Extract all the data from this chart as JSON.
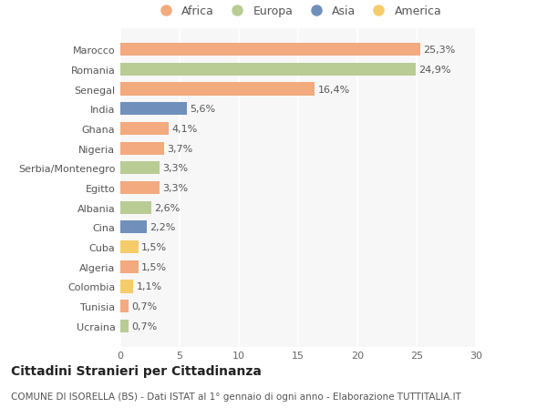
{
  "categories": [
    "Ucraina",
    "Tunisia",
    "Colombia",
    "Algeria",
    "Cuba",
    "Cina",
    "Albania",
    "Egitto",
    "Serbia/Montenegro",
    "Nigeria",
    "Ghana",
    "India",
    "Senegal",
    "Romania",
    "Marocco"
  ],
  "values": [
    0.7,
    0.7,
    1.1,
    1.5,
    1.5,
    2.2,
    2.6,
    3.3,
    3.3,
    3.7,
    4.1,
    5.6,
    16.4,
    24.9,
    25.3
  ],
  "labels": [
    "0,7%",
    "0,7%",
    "1,1%",
    "1,5%",
    "1,5%",
    "2,2%",
    "2,6%",
    "3,3%",
    "3,3%",
    "3,7%",
    "4,1%",
    "5,6%",
    "16,4%",
    "24,9%",
    "25,3%"
  ],
  "continents": [
    "Europa",
    "Africa",
    "America",
    "Africa",
    "America",
    "Asia",
    "Europa",
    "Africa",
    "Europa",
    "Africa",
    "Africa",
    "Asia",
    "Africa",
    "Europa",
    "Africa"
  ],
  "continent_colors": {
    "Africa": "#F2AA7E",
    "Europa": "#B8CC94",
    "Asia": "#7090BB",
    "America": "#F5CC6A"
  },
  "legend_order": [
    "Africa",
    "Europa",
    "Asia",
    "America"
  ],
  "title": "Cittadini Stranieri per Cittadinanza",
  "subtitle": "COMUNE DI ISORELLA (BS) - Dati ISTAT al 1° gennaio di ogni anno - Elaborazione TUTTITALIA.IT",
  "xlim": [
    0,
    30
  ],
  "xticks": [
    0,
    5,
    10,
    15,
    20,
    25,
    30
  ],
  "background_color": "#FFFFFF",
  "plot_bg_color": "#F7F7F7",
  "grid_color": "#FFFFFF",
  "bar_height": 0.65,
  "title_fontsize": 10,
  "subtitle_fontsize": 7.5,
  "label_fontsize": 8,
  "tick_fontsize": 8,
  "legend_fontsize": 9
}
